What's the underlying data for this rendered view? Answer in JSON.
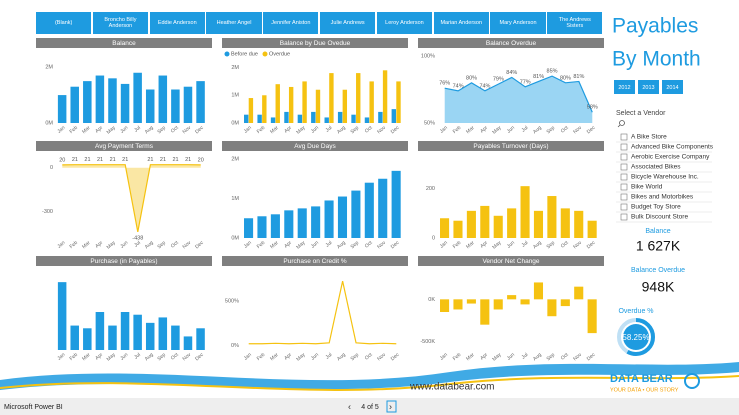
{
  "filters": [
    "(Blank)",
    "Broncho Billy Anderson",
    "Eddie Anderson",
    "Heather Angel",
    "Jennifer Aniston",
    "Julie Andrews",
    "Leroy Anderson",
    "Marian Anderson",
    "Mary Anderson",
    "The Andrews Sisters"
  ],
  "page_title": [
    "Payables",
    "By Month"
  ],
  "years": [
    "2012",
    "2013",
    "2014"
  ],
  "vendor_heading": "Select a Vendor",
  "vendors": [
    "A Bike Store",
    "Advanced Bike Components",
    "Aerobic Exercise Company",
    "Associated Bikes",
    "Bicycle Warehouse Inc.",
    "Bike World",
    "Bikes and Motorbikes",
    "Budget Toy Store",
    "Bulk Discount Store"
  ],
  "kpis": [
    {
      "label": "Balance",
      "value": "1 627K"
    },
    {
      "label": "Balance Overdue",
      "value": "948K"
    }
  ],
  "overdue": {
    "label": "Overdue %",
    "value": 58.25,
    "value_label": "58.25%"
  },
  "logo": {
    "name": "DATA BEAR",
    "tagline": "YOUR DATA • OUR STORY"
  },
  "website": "www.databear.com",
  "taskbar": {
    "app": "Microsoft Power BI",
    "page": "4 of 5"
  },
  "chart_data": [
    {
      "type": "bar",
      "title": "Balance",
      "categories": [
        "Jan",
        "Feb",
        "Mar",
        "Apr",
        "May",
        "Jun",
        "Jul",
        "Aug",
        "Sep",
        "Oct",
        "Nov",
        "Dec"
      ],
      "values": [
        1.0,
        1.3,
        1.5,
        1.7,
        1.6,
        1.4,
        1.8,
        1.2,
        1.7,
        1.2,
        1.3,
        1.5
      ],
      "color": "#1e9be0",
      "ylim": [
        0,
        2.4
      ],
      "yticks": [
        {
          "value": 0,
          "label": "0M"
        },
        {
          "value": 2,
          "label": "2M"
        }
      ]
    },
    {
      "type": "bar",
      "title": "Balance by Due Ovedue",
      "categories": [
        "Jan",
        "Feb",
        "Mar",
        "Apr",
        "May",
        "Jun",
        "Jul",
        "Aug",
        "Sep",
        "Oct",
        "Nov",
        "Dec"
      ],
      "series": [
        {
          "name": "Before due",
          "color": "#1e9be0",
          "values": [
            0.3,
            0.3,
            0.2,
            0.4,
            0.3,
            0.4,
            0.2,
            0.4,
            0.3,
            0.2,
            0.4,
            0.5
          ]
        },
        {
          "name": "Overdue",
          "color": "#f5c211",
          "values": [
            0.9,
            1.0,
            1.4,
            1.3,
            1.5,
            1.2,
            1.8,
            1.2,
            1.8,
            1.5,
            1.9,
            1.5
          ]
        }
      ],
      "ylim": [
        0,
        2.2
      ],
      "yticks": [
        {
          "value": 0,
          "label": "0M"
        },
        {
          "value": 1,
          "label": "1M"
        },
        {
          "value": 2,
          "label": "2M"
        }
      ]
    },
    {
      "type": "area",
      "title": "Balance Overdue",
      "categories": [
        "Jan",
        "Feb",
        "Mar",
        "Apr",
        "May",
        "Jun",
        "Jul",
        "Aug",
        "Sep",
        "Oct",
        "Nov",
        "Dec"
      ],
      "values": [
        76,
        74,
        80,
        74,
        79,
        84,
        77,
        81,
        85,
        80,
        81,
        58
      ],
      "value_labels": [
        "76%",
        "74%",
        "80%",
        "74%",
        "79%",
        "84%",
        "77%",
        "81%",
        "85%",
        "80%",
        "81%",
        "58%"
      ],
      "color": "#1e9be0",
      "fill": "#8fd0f2",
      "ylim": [
        50,
        100
      ],
      "yticks": [
        {
          "value": 50,
          "label": "50%"
        },
        {
          "value": 100,
          "label": "100%"
        }
      ]
    },
    {
      "type": "area",
      "title": "Avg Payment Terms",
      "categories": [
        "Jan",
        "Feb",
        "Mar",
        "Apr",
        "May",
        "Jun",
        "Jul",
        "Aug",
        "Sep",
        "Oct",
        "Nov",
        "Dec"
      ],
      "values": [
        20,
        21,
        21,
        21,
        21,
        21,
        -438,
        21,
        21,
        21,
        21,
        20
      ],
      "data_labels": true,
      "color": "#f5c211",
      "fill": "#f9e49a",
      "ylim": [
        -480,
        60
      ],
      "yticks": [
        0,
        -300
      ]
    },
    {
      "type": "bar",
      "title": "Avg Due Days",
      "categories": [
        "Jan",
        "Feb",
        "Mar",
        "Apr",
        "May",
        "Jun",
        "Jul",
        "Aug",
        "Sep",
        "Oct",
        "Nov",
        "Dec"
      ],
      "values": [
        0.5,
        0.55,
        0.6,
        0.7,
        0.75,
        0.8,
        0.95,
        1.05,
        1.2,
        1.4,
        1.5,
        1.7
      ],
      "color": "#1e9be0",
      "ylim": [
        0,
        2
      ],
      "yticks": [
        {
          "value": 0,
          "label": "0M"
        },
        {
          "value": 1,
          "label": "1M"
        },
        {
          "value": 2,
          "label": "2M"
        }
      ]
    },
    {
      "type": "bar",
      "title": "Payables Turnover (Days)",
      "categories": [
        "Jan",
        "Feb",
        "Mar",
        "Apr",
        "May",
        "Jun",
        "Jul",
        "Aug",
        "Sep",
        "Oct",
        "Nov",
        "Dec"
      ],
      "values": [
        80,
        70,
        110,
        130,
        90,
        120,
        210,
        110,
        170,
        120,
        110,
        70
      ],
      "color": "#f5c211",
      "ylim": [
        0,
        320
      ],
      "yticks": [
        0,
        200
      ]
    },
    {
      "type": "bar",
      "title": "Purchase (in Payables)",
      "categories": [
        "Jan",
        "Feb",
        "Mar",
        "Apr",
        "May",
        "Jun",
        "Jul",
        "Aug",
        "Sep",
        "Oct",
        "Nov",
        "Dec"
      ],
      "values": [
        2.5,
        0.9,
        0.8,
        1.4,
        0.9,
        1.4,
        1.3,
        1.0,
        1.2,
        0.9,
        0.5,
        0.8
      ],
      "color": "#1e9be0",
      "ylim": [
        0,
        2.8
      ]
    },
    {
      "type": "line",
      "title": "Purchase on Credit %",
      "categories": [
        "Jan",
        "Feb",
        "Mar",
        "Apr",
        "May",
        "Jun",
        "Jul",
        "Aug",
        "Sep",
        "Oct",
        "Nov",
        "Dec"
      ],
      "values": [
        20,
        20,
        25,
        20,
        25,
        20,
        30,
        720,
        30,
        20,
        25,
        20
      ],
      "color": "#f5c211",
      "ylim": [
        -50,
        800
      ],
      "yticks": [
        {
          "value": 0,
          "label": "0%"
        },
        {
          "value": 500,
          "label": "500%"
        }
      ]
    },
    {
      "type": "bar",
      "title": "Vendor Net Change",
      "categories": [
        "Jan",
        "Feb",
        "Mar",
        "Apr",
        "May",
        "Jun",
        "Jul",
        "Aug",
        "Sep",
        "Oct",
        "Nov",
        "Dec"
      ],
      "values": [
        -150,
        -120,
        -50,
        -300,
        -120,
        50,
        -60,
        200,
        -200,
        -80,
        150,
        -400
      ],
      "color": "#f5c211",
      "ylim": [
        -600,
        300
      ],
      "yticks": [
        {
          "value": 0,
          "label": "0K"
        },
        {
          "value": -500,
          "label": "-500K"
        }
      ]
    }
  ]
}
